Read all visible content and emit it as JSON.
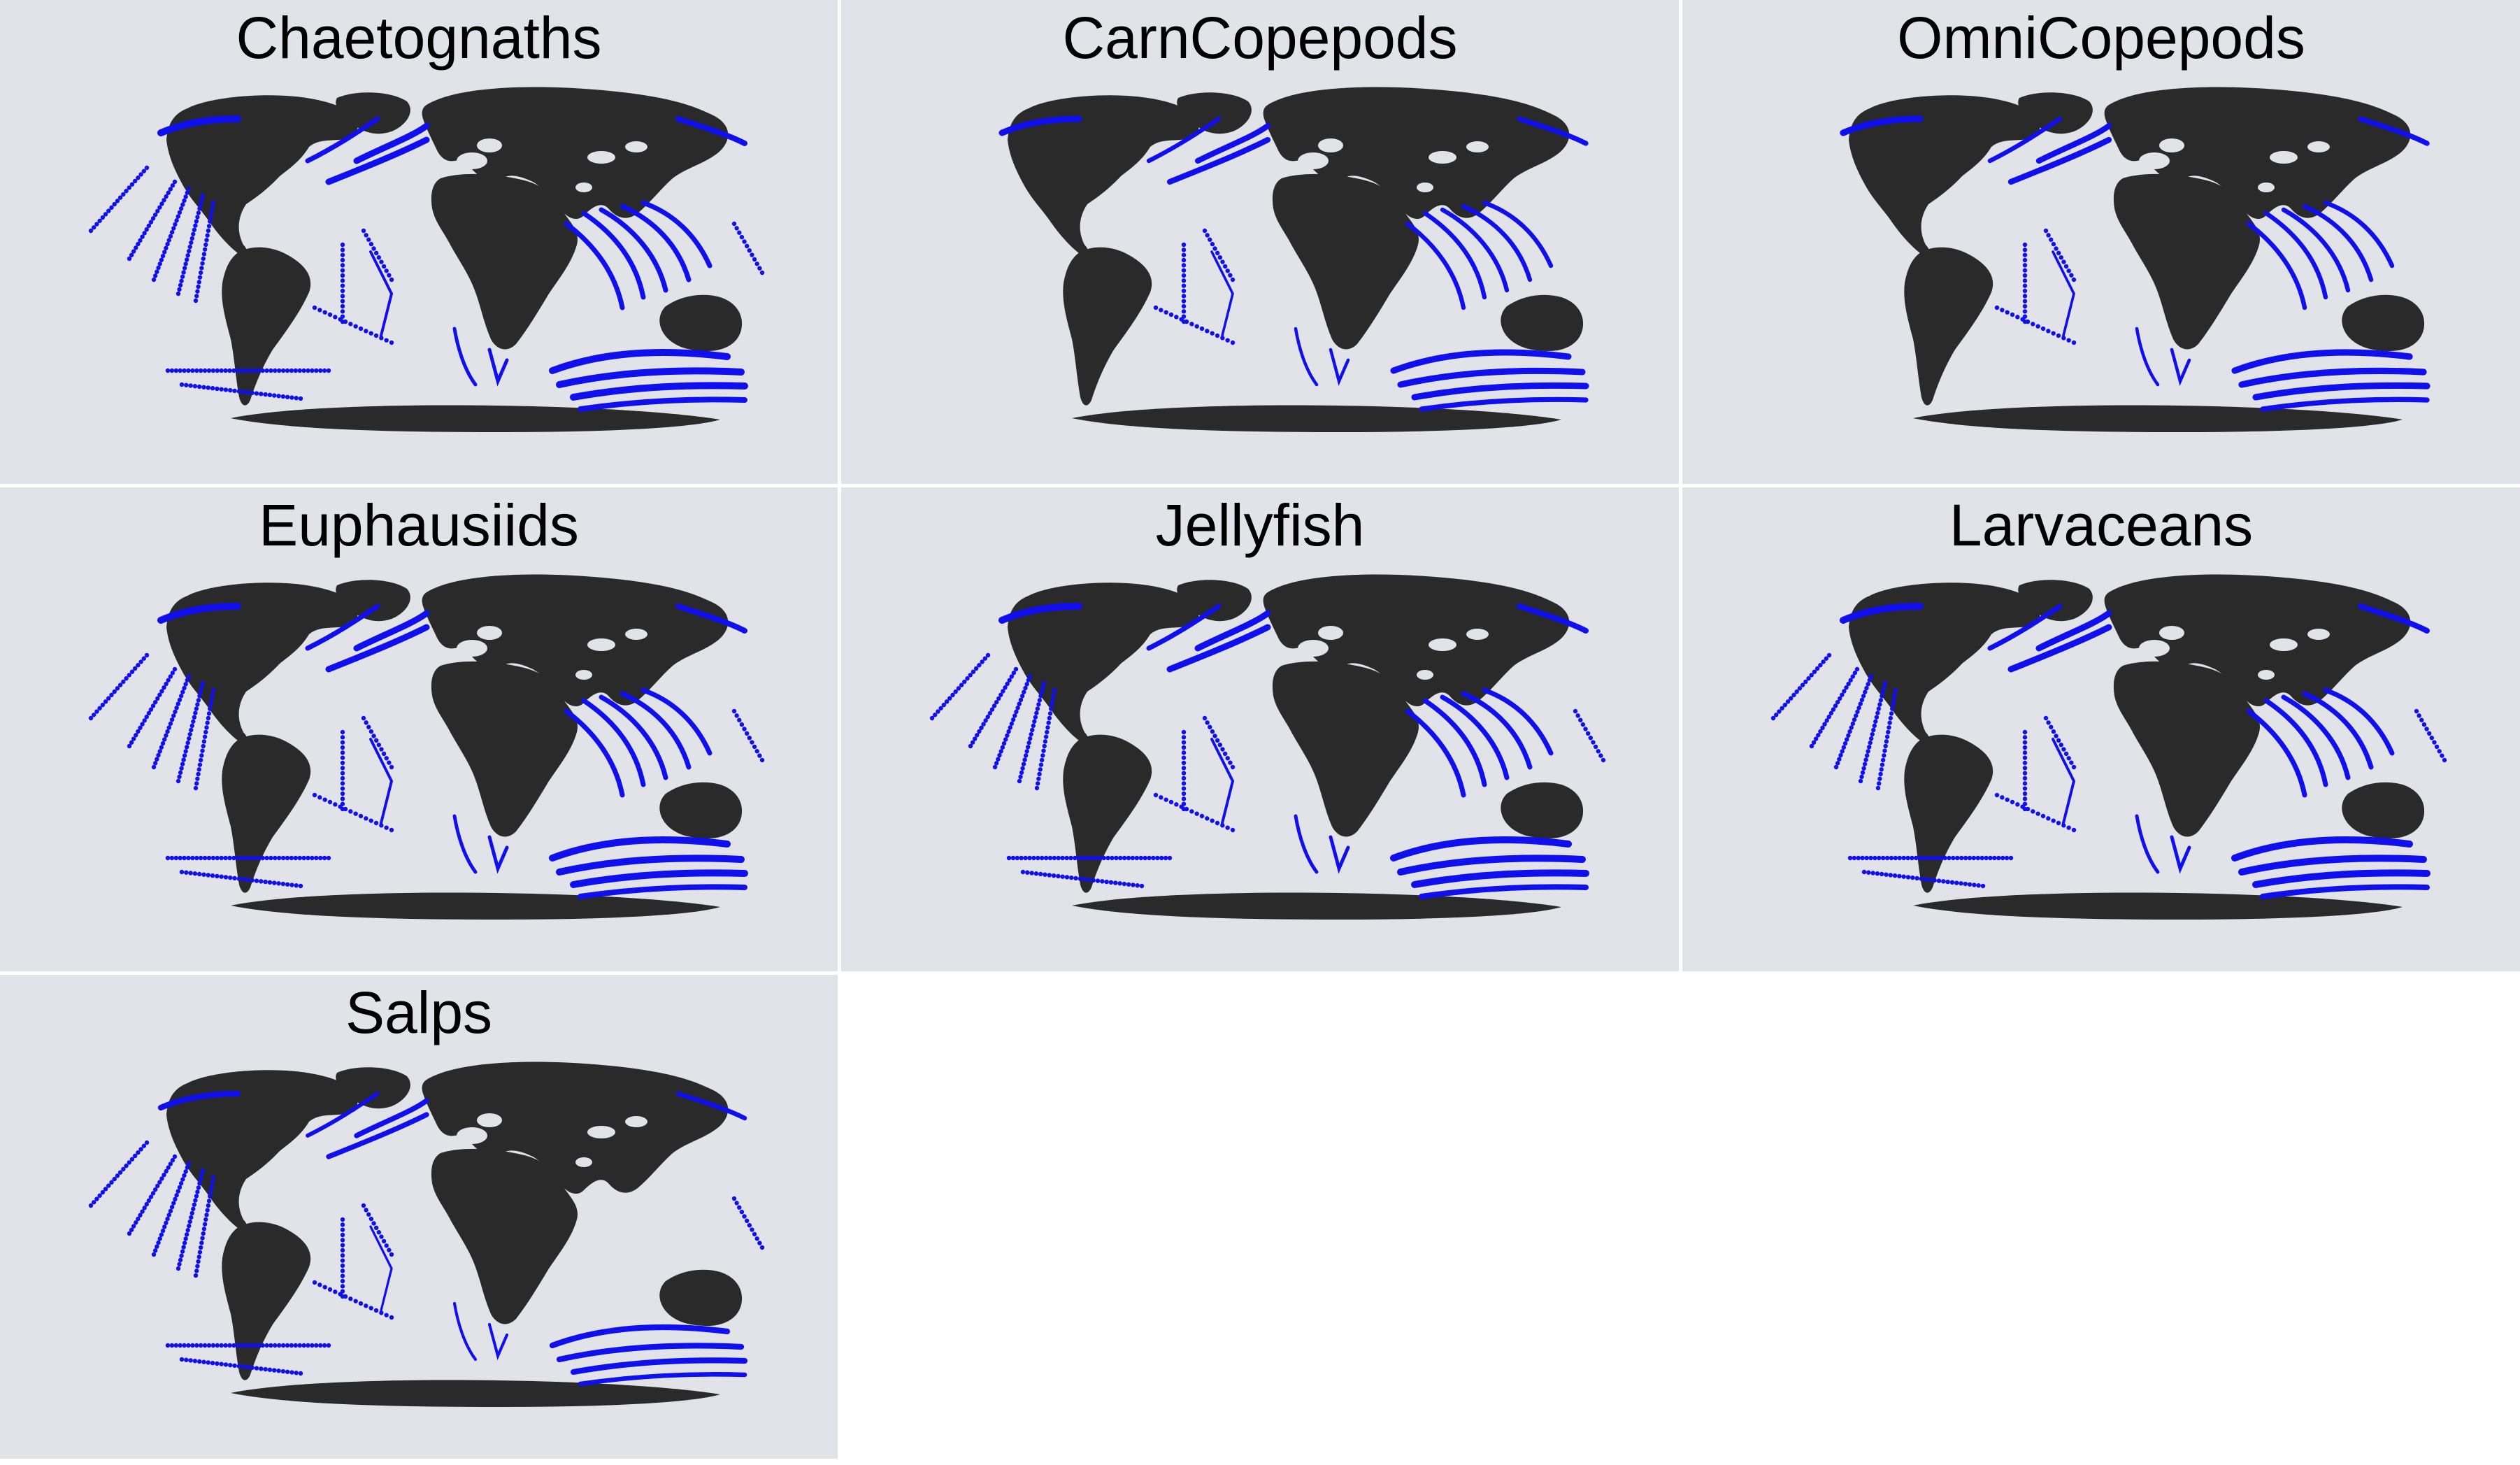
{
  "colors": {
    "panel_bg": "#e2e3e8",
    "land": "#2a2a2a",
    "observations": "#1010ee",
    "page_bg": "#ffffff"
  },
  "panels": [
    {
      "title": "Chaetognaths",
      "density": 1.0,
      "pacific": 1.0,
      "southern": 1.0
    },
    {
      "title": "CarnCopepods",
      "density": 0.75,
      "pacific": 0.0,
      "southern": 1.0
    },
    {
      "title": "OmniCopepods",
      "density": 0.8,
      "pacific": 0.0,
      "southern": 1.0
    },
    {
      "title": "Euphausiids",
      "density": 1.0,
      "pacific": 1.0,
      "southern": 1.0
    },
    {
      "title": "Jellyfish",
      "density": 1.0,
      "pacific": 1.0,
      "southern": 0.9
    },
    {
      "title": "Larvaceans",
      "density": 1.0,
      "pacific": 1.0,
      "southern": 1.0
    },
    {
      "title": "Salps",
      "density": 0.55,
      "pacific": 1.0,
      "southern": 0.75
    }
  ]
}
